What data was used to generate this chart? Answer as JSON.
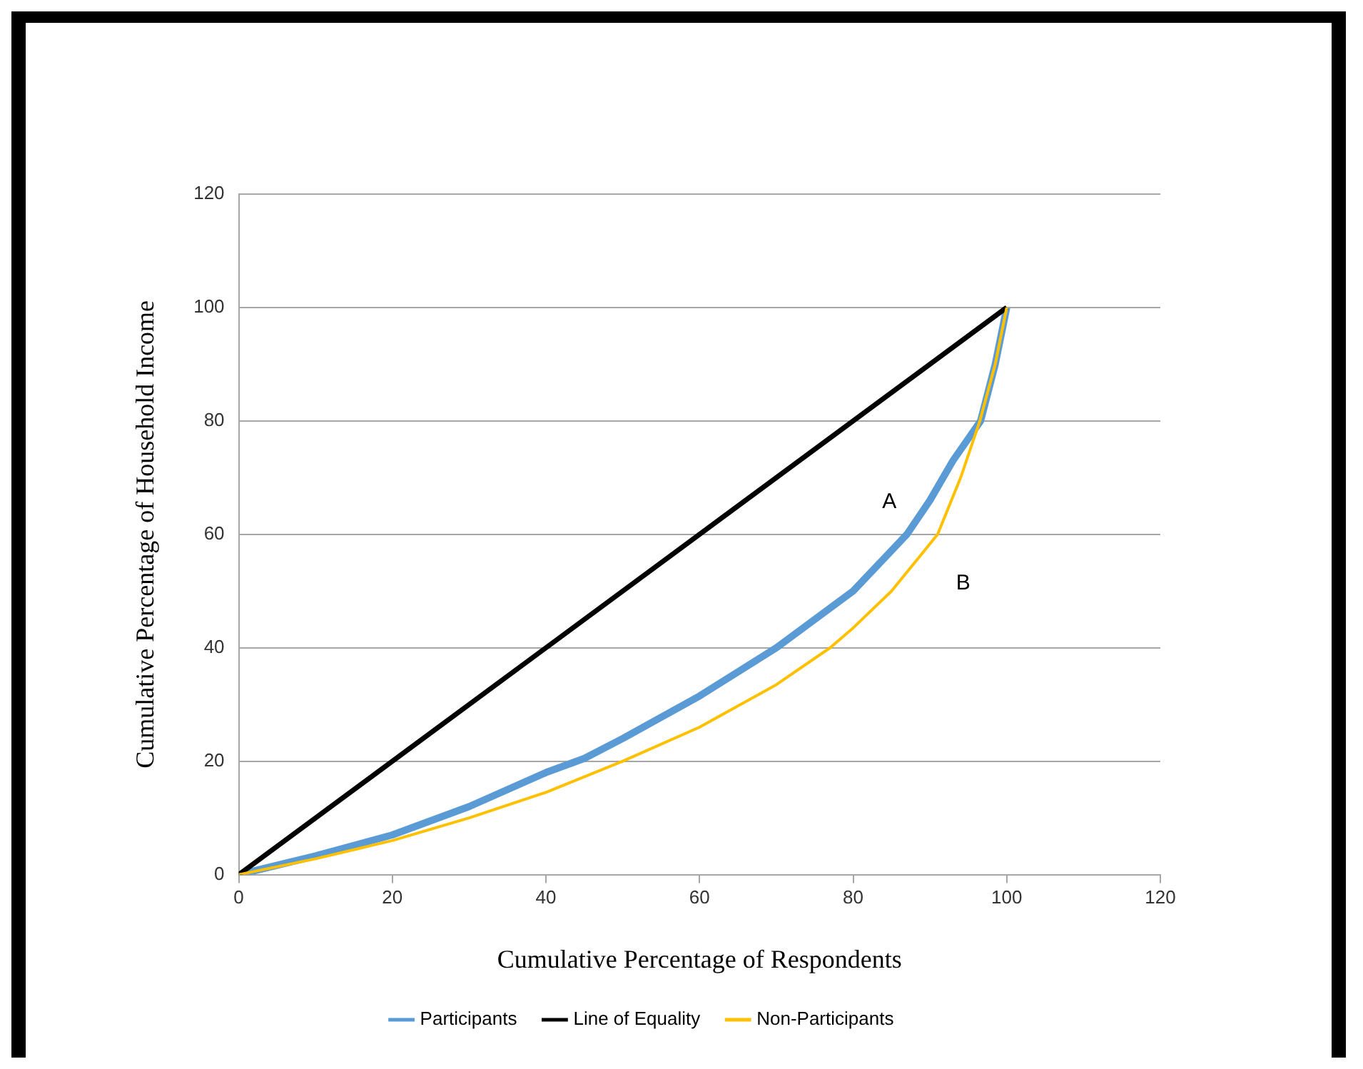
{
  "chart_data": {
    "type": "line",
    "xlabel": "Cumulative Percentage of Respondents",
    "ylabel": "Cumulative Percentage of Household Income",
    "xlim": [
      0,
      120
    ],
    "xticks": [
      0,
      20,
      40,
      60,
      80,
      100,
      120
    ],
    "ylim": [
      0,
      120
    ],
    "yticks": [
      0,
      20,
      40,
      60,
      80,
      100,
      120
    ],
    "grid": "y",
    "legend": "bottom",
    "marker": "none",
    "line_style": "solid",
    "series": [
      {
        "name": "Participants",
        "color": "#5b9bd5",
        "x": [
          0,
          10,
          20,
          30,
          40,
          45,
          50,
          60,
          70,
          80,
          87,
          90,
          93,
          96.6,
          98.5,
          100
        ],
        "values": [
          0,
          3.3,
          7,
          12,
          18,
          20.5,
          24,
          31.5,
          40,
          50,
          60,
          66,
          73,
          80,
          90,
          100
        ]
      },
      {
        "name": "Line of Equality",
        "color": "#000000",
        "x": [
          0,
          100
        ],
        "values": [
          0,
          100
        ]
      },
      {
        "name": "Non-Participants",
        "color": "#ffc000",
        "x": [
          0,
          10,
          20,
          30,
          40,
          50,
          60,
          70,
          77,
          80,
          85,
          91,
          94,
          96.5,
          98.5,
          100
        ],
        "values": [
          0,
          2.8,
          6,
          10,
          14.5,
          20,
          26,
          33.5,
          40,
          43.5,
          50,
          60,
          70,
          80,
          90,
          100
        ]
      }
    ],
    "annotations": [
      "A",
      "B"
    ]
  }
}
